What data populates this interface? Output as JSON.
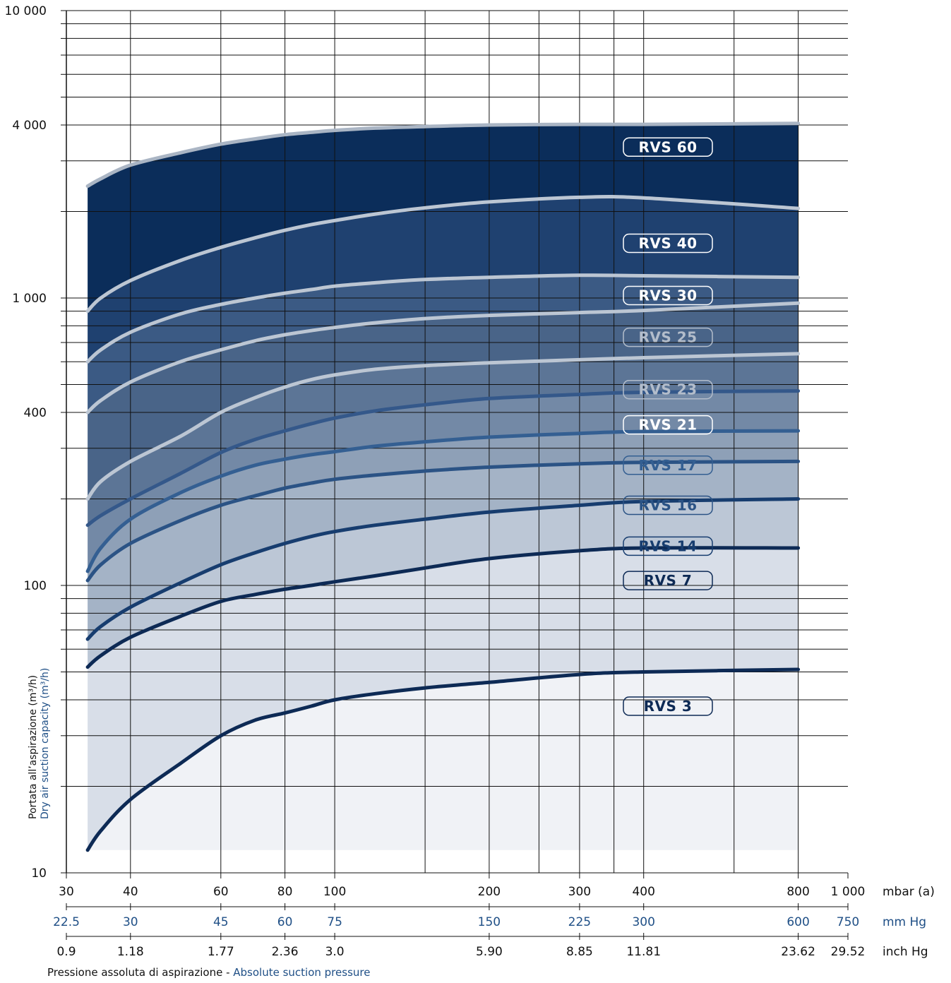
{
  "chart_data": {
    "type": "line",
    "x_scale": "log",
    "y_scale": "log",
    "xlim": [
      30,
      1000
    ],
    "ylim": [
      10,
      10000
    ],
    "grid": true,
    "y_ticks": [
      {
        "value": 10,
        "label": "10"
      },
      {
        "value": 100,
        "label": "100"
      },
      {
        "value": 400,
        "label": "400"
      },
      {
        "value": 1000,
        "label": "1 000"
      },
      {
        "value": 4000,
        "label": "4 000"
      },
      {
        "value": 10000,
        "label": "10 000"
      }
    ],
    "x_ticks_mbar": [
      {
        "value": 30,
        "label": "30"
      },
      {
        "value": 40,
        "label": "40"
      },
      {
        "value": 60,
        "label": "60"
      },
      {
        "value": 80,
        "label": "80"
      },
      {
        "value": 100,
        "label": "100"
      },
      {
        "value": 200,
        "label": "200"
      },
      {
        "value": 300,
        "label": "300"
      },
      {
        "value": 400,
        "label": "400"
      },
      {
        "value": 800,
        "label": "800"
      },
      {
        "value": 1000,
        "label": "1 000"
      }
    ],
    "x_ticks_mmhg": [
      {
        "value": 30,
        "label": "22.5"
      },
      {
        "value": 40,
        "label": "30"
      },
      {
        "value": 60,
        "label": "45"
      },
      {
        "value": 80,
        "label": "60"
      },
      {
        "value": 100,
        "label": "75"
      },
      {
        "value": 200,
        "label": "150"
      },
      {
        "value": 300,
        "label": "225"
      },
      {
        "value": 400,
        "label": "300"
      },
      {
        "value": 800,
        "label": "600"
      },
      {
        "value": 1000,
        "label": "750"
      }
    ],
    "x_ticks_inhg": [
      {
        "value": 30,
        "label": "0.9"
      },
      {
        "value": 40,
        "label": "1.18"
      },
      {
        "value": 60,
        "label": "1.77"
      },
      {
        "value": 80,
        "label": "2.36"
      },
      {
        "value": 100,
        "label": "3.0"
      },
      {
        "value": 200,
        "label": "5.90"
      },
      {
        "value": 300,
        "label": "8.85"
      },
      {
        "value": 400,
        "label": "11.81"
      },
      {
        "value": 800,
        "label": "23.62"
      },
      {
        "value": 1000,
        "label": "29.52"
      }
    ],
    "unit_labels": {
      "mbar": "mbar (a)",
      "mmhg": "mm Hg",
      "inhg": "inch Hg"
    },
    "ylabel_it": "Portata all’aspirazione (m³/h)",
    "ylabel_en": "Dry air suction capacity (m³/h)",
    "xlabel_it": "Pressione assoluta di aspirazione - ",
    "xlabel_en": "Absolute suction pressure",
    "x": [
      33,
      35,
      40,
      50,
      60,
      70,
      80,
      90,
      100,
      120,
      150,
      200,
      300,
      400,
      800
    ],
    "series": [
      {
        "name": "RVS 3",
        "color": "#0d2a55",
        "label_color": "#0d2a55",
        "values": [
          12,
          14,
          18,
          24,
          30,
          34,
          36,
          38,
          40,
          42,
          44,
          46,
          49,
          50,
          51
        ]
      },
      {
        "name": "RVS 7",
        "color": "#0d2a55",
        "label_color": "#0d2a55",
        "values": [
          52,
          57,
          66,
          78,
          88,
          93,
          97,
          100,
          103,
          108,
          115,
          124,
          132,
          135,
          135
        ]
      },
      {
        "name": "RVS 14",
        "color": "#173d6f",
        "label_color": "#173d6f",
        "values": [
          65,
          72,
          84,
          102,
          118,
          130,
          140,
          148,
          154,
          162,
          170,
          180,
          190,
          196,
          200
        ]
      },
      {
        "name": "RVS 16",
        "color": "#2b5385",
        "label_color": "#2b5385",
        "values": [
          104,
          118,
          140,
          168,
          190,
          205,
          218,
          227,
          234,
          242,
          250,
          258,
          265,
          268,
          270
        ]
      },
      {
        "name": "RVS 17",
        "color": "#345f92",
        "label_color": "#345f92",
        "values": [
          112,
          135,
          170,
          210,
          240,
          262,
          275,
          285,
          292,
          305,
          316,
          328,
          338,
          343,
          345
        ]
      },
      {
        "name": "RVS 21",
        "color": "#34588a",
        "label_color": "#ffffff",
        "values": [
          162,
          175,
          200,
          245,
          290,
          322,
          345,
          365,
          382,
          405,
          425,
          447,
          462,
          470,
          475
        ]
      },
      {
        "name": "RVS 23",
        "color": "#bcc6d3",
        "label_color": "#b3bdcb",
        "values": [
          200,
          230,
          270,
          330,
          400,
          450,
          490,
          520,
          540,
          565,
          582,
          595,
          610,
          620,
          640
        ]
      },
      {
        "name": "RVS 25",
        "color": "#bcc6d3",
        "label_color": "#b3bdcb",
        "values": [
          400,
          440,
          510,
          600,
          660,
          710,
          745,
          770,
          790,
          820,
          848,
          870,
          890,
          905,
          960
        ]
      },
      {
        "name": "RVS 30",
        "color": "#bcc6d3",
        "label_color": "#ffffff",
        "values": [
          600,
          660,
          760,
          880,
          950,
          1000,
          1040,
          1070,
          1100,
          1130,
          1160,
          1180,
          1200,
          1195,
          1180
        ]
      },
      {
        "name": "RVS 40",
        "color": "#bcc6d3",
        "label_color": "#ffffff",
        "values": [
          900,
          1000,
          1150,
          1350,
          1500,
          1620,
          1720,
          1800,
          1860,
          1960,
          2060,
          2160,
          2240,
          2230,
          2050
        ]
      },
      {
        "name": "RVS 60",
        "color": "#aab5c4",
        "label_color": "#ffffff",
        "values": [
          2450,
          2600,
          2900,
          3200,
          3430,
          3580,
          3700,
          3770,
          3830,
          3900,
          3950,
          4000,
          4020,
          4020,
          4050
        ]
      }
    ],
    "fills": [
      "#f0f2f6",
      "#d8dee8",
      "#bcc7d6",
      "#a4b3c6",
      "#8ea0b7",
      "#7389a6",
      "#5c7596",
      "#496488",
      "#3b5a84",
      "#1f4170",
      "#0b2d5a"
    ]
  }
}
